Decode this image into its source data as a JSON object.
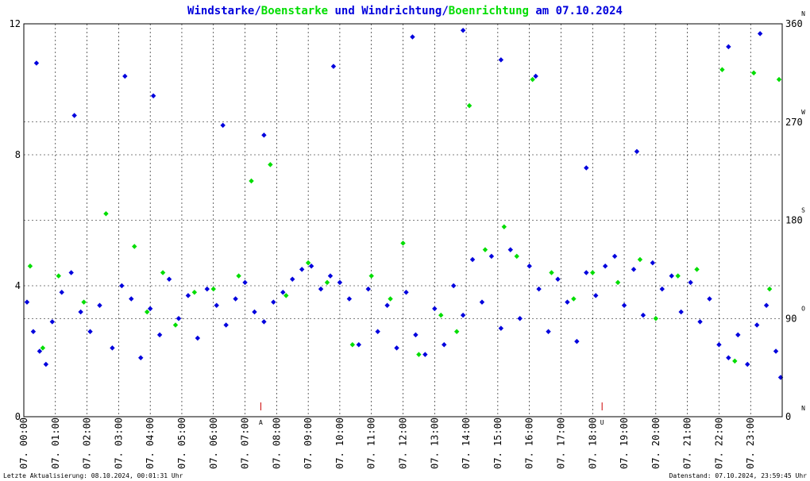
{
  "title": {
    "part1": "Windstarke/",
    "part2": "Boenstarke",
    "part3": " und Windrichtung/",
    "part4": "Boenrichtung",
    "part5": " am 07.10.2024"
  },
  "footer": {
    "left": "Letzte Aktualisierung: 08.10.2024, 00:01:31 Uhr",
    "right": "Datenstand: 07.10.2024, 23:59:45 Uhr"
  },
  "colors": {
    "primary": "#0000dd",
    "secondary": "#00dd00",
    "grid": "#000000",
    "marker": "#cc0000"
  },
  "chart_data": {
    "type": "scatter",
    "x_unit": "hour",
    "xlim": [
      0,
      24
    ],
    "ylim": [
      0,
      12
    ],
    "ylim_right": [
      0,
      360
    ],
    "y_ticks": [
      0,
      4,
      8,
      12
    ],
    "y_ticks_right": [
      0,
      90,
      180,
      270,
      360
    ],
    "compass_labels": [
      {
        "value": 0,
        "label": "N"
      },
      {
        "value": 90,
        "label": "O"
      },
      {
        "value": 180,
        "label": "S"
      },
      {
        "value": 270,
        "label": "W"
      },
      {
        "value": 360,
        "label": "N"
      }
    ],
    "x_tick_labels": [
      "07. 00:00",
      "07. 01:00",
      "07. 02:00",
      "07. 03:00",
      "07. 04:00",
      "07. 05:00",
      "07. 06:00",
      "07. 07:00",
      "07. 08:00",
      "07. 09:00",
      "07. 10:00",
      "07. 11:00",
      "07. 12:00",
      "07. 13:00",
      "07. 14:00",
      "07. 15:00",
      "07. 16:00",
      "07. 17:00",
      "07. 18:00",
      "07. 19:00",
      "07. 20:00",
      "07. 21:00",
      "07. 22:00",
      "07. 23:00"
    ],
    "events": [
      {
        "x": 7.5,
        "label": "A"
      },
      {
        "x": 18.3,
        "label": "U"
      }
    ],
    "grid": true,
    "series": [
      {
        "name": "Windstarke",
        "color": "#0000dd",
        "points": [
          [
            0.1,
            3.5
          ],
          [
            0.3,
            2.6
          ],
          [
            0.5,
            2.0
          ],
          [
            0.7,
            1.6
          ],
          [
            0.9,
            2.9
          ],
          [
            1.2,
            3.8
          ],
          [
            1.5,
            4.4
          ],
          [
            1.8,
            3.2
          ],
          [
            2.1,
            2.6
          ],
          [
            2.4,
            3.4
          ],
          [
            2.8,
            2.1
          ],
          [
            3.1,
            4.0
          ],
          [
            3.4,
            3.6
          ],
          [
            3.7,
            1.8
          ],
          [
            4.0,
            3.3
          ],
          [
            4.3,
            2.5
          ],
          [
            4.6,
            4.2
          ],
          [
            4.9,
            3.0
          ],
          [
            5.2,
            3.7
          ],
          [
            5.5,
            2.4
          ],
          [
            5.8,
            3.9
          ],
          [
            6.1,
            3.4
          ],
          [
            6.4,
            2.8
          ],
          [
            6.7,
            3.6
          ],
          [
            7.0,
            4.1
          ],
          [
            7.3,
            3.2
          ],
          [
            7.6,
            2.9
          ],
          [
            7.9,
            3.5
          ],
          [
            8.2,
            3.8
          ],
          [
            8.5,
            4.2
          ],
          [
            8.8,
            4.5
          ],
          [
            9.1,
            4.6
          ],
          [
            9.4,
            3.9
          ],
          [
            9.7,
            4.3
          ],
          [
            10.0,
            4.1
          ],
          [
            10.3,
            3.6
          ],
          [
            10.6,
            2.2
          ],
          [
            10.9,
            3.9
          ],
          [
            11.2,
            2.6
          ],
          [
            11.5,
            3.4
          ],
          [
            11.8,
            2.1
          ],
          [
            12.1,
            3.8
          ],
          [
            12.4,
            2.5
          ],
          [
            12.7,
            1.9
          ],
          [
            13.0,
            3.3
          ],
          [
            13.3,
            2.2
          ],
          [
            13.6,
            4.0
          ],
          [
            13.9,
            3.1
          ],
          [
            14.2,
            4.8
          ],
          [
            14.5,
            3.5
          ],
          [
            14.8,
            4.9
          ],
          [
            15.1,
            2.7
          ],
          [
            15.4,
            5.1
          ],
          [
            15.7,
            3.0
          ],
          [
            16.0,
            4.6
          ],
          [
            16.3,
            3.9
          ],
          [
            16.6,
            2.6
          ],
          [
            16.9,
            4.2
          ],
          [
            17.2,
            3.5
          ],
          [
            17.5,
            2.3
          ],
          [
            17.8,
            4.4
          ],
          [
            18.1,
            3.7
          ],
          [
            18.4,
            4.6
          ],
          [
            18.7,
            4.9
          ],
          [
            19.0,
            3.4
          ],
          [
            19.3,
            4.5
          ],
          [
            19.6,
            3.1
          ],
          [
            19.9,
            4.7
          ],
          [
            20.2,
            3.9
          ],
          [
            20.5,
            4.3
          ],
          [
            20.8,
            3.2
          ],
          [
            21.1,
            4.1
          ],
          [
            21.4,
            2.9
          ],
          [
            21.7,
            3.6
          ],
          [
            22.0,
            2.2
          ],
          [
            22.3,
            1.8
          ],
          [
            22.6,
            2.5
          ],
          [
            22.9,
            1.6
          ],
          [
            23.2,
            2.8
          ],
          [
            23.5,
            3.4
          ],
          [
            23.8,
            2.0
          ],
          [
            23.95,
            1.2
          ],
          [
            0.4,
            10.8
          ],
          [
            1.6,
            9.2
          ],
          [
            3.2,
            10.4
          ],
          [
            9.8,
            10.7
          ],
          [
            12.3,
            11.6
          ],
          [
            13.9,
            11.8
          ],
          [
            15.1,
            10.9
          ],
          [
            16.2,
            10.4
          ],
          [
            22.3,
            11.3
          ],
          [
            23.3,
            11.7
          ],
          [
            4.1,
            9.8
          ],
          [
            7.6,
            8.6
          ],
          [
            6.3,
            8.9
          ],
          [
            17.8,
            7.6
          ],
          [
            19.4,
            8.1
          ]
        ]
      },
      {
        "name": "Boenstarke",
        "color": "#00dd00",
        "points": [
          [
            0.2,
            4.6
          ],
          [
            0.6,
            2.1
          ],
          [
            1.1,
            4.3
          ],
          [
            1.9,
            3.5
          ],
          [
            2.6,
            6.2
          ],
          [
            3.5,
            5.2
          ],
          [
            3.9,
            3.2
          ],
          [
            4.4,
            4.4
          ],
          [
            4.8,
            2.8
          ],
          [
            5.4,
            3.8
          ],
          [
            6.0,
            3.9
          ],
          [
            6.8,
            4.3
          ],
          [
            7.2,
            7.2
          ],
          [
            7.8,
            7.7
          ],
          [
            8.3,
            3.7
          ],
          [
            9.0,
            4.7
          ],
          [
            9.6,
            4.1
          ],
          [
            10.4,
            2.2
          ],
          [
            11.0,
            4.3
          ],
          [
            11.6,
            3.6
          ],
          [
            12.0,
            5.3
          ],
          [
            12.5,
            1.9
          ],
          [
            13.2,
            3.1
          ],
          [
            13.7,
            2.6
          ],
          [
            14.1,
            9.5
          ],
          [
            14.6,
            5.1
          ],
          [
            15.2,
            5.8
          ],
          [
            15.6,
            4.9
          ],
          [
            16.1,
            10.3
          ],
          [
            16.7,
            4.4
          ],
          [
            17.4,
            3.6
          ],
          [
            18.0,
            4.4
          ],
          [
            18.8,
            4.1
          ],
          [
            19.5,
            4.8
          ],
          [
            20.0,
            3.0
          ],
          [
            20.7,
            4.3
          ],
          [
            21.3,
            4.5
          ],
          [
            22.1,
            10.6
          ],
          [
            22.5,
            1.7
          ],
          [
            23.1,
            10.5
          ],
          [
            23.6,
            3.9
          ],
          [
            23.9,
            10.3
          ]
        ]
      }
    ]
  }
}
